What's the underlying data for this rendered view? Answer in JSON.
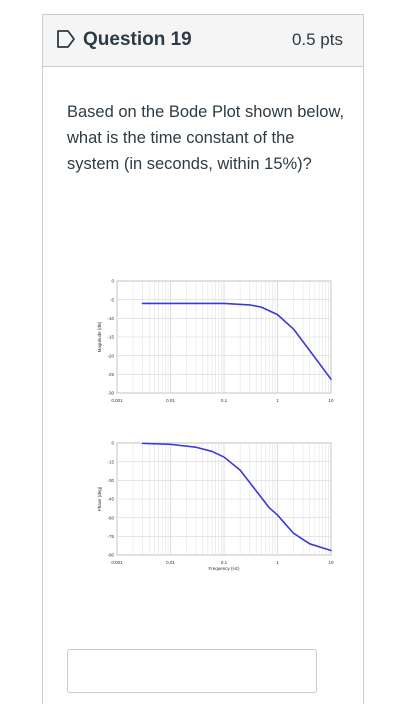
{
  "question": {
    "title": "Question 19",
    "points": "0.5 pts",
    "text": "Based on the Bode Plot shown below, what is the time constant of the system (in seconds, within 15%)?",
    "answer_value": "",
    "flag_icon": "flag-icon"
  },
  "chart_data": [
    {
      "type": "line",
      "ylabel": "Magnitude (dB)",
      "xlabel": "",
      "x_scale": "log",
      "xlim": [
        0.001,
        10
      ],
      "ylim": [
        -30,
        0
      ],
      "x_ticks": [
        "0.001",
        "0.01",
        "0.1",
        "1",
        "10"
      ],
      "y_ticks": [
        "0",
        "-5",
        "-10",
        "-15",
        "-20",
        "-25",
        "-30"
      ],
      "grid": true,
      "series": [
        {
          "color": "#3a3ad6",
          "x": [
            0.003,
            0.1,
            0.3,
            0.5,
            1,
            2,
            5,
            10
          ],
          "y": [
            -6,
            -6,
            -6.4,
            -7,
            -9,
            -12.9,
            -20.5,
            -26.3
          ]
        }
      ]
    },
    {
      "type": "line",
      "ylabel": "Phase (deg)",
      "xlabel": "Frequency (Hz)",
      "x_scale": "log",
      "xlim": [
        0.001,
        10
      ],
      "ylim": [
        -90,
        0
      ],
      "x_ticks": [
        "0.001",
        "0.01",
        "0.1",
        "1",
        "10"
      ],
      "y_ticks": [
        "0",
        "-15",
        "-30",
        "-45",
        "-60",
        "-75",
        "-90"
      ],
      "grid": true,
      "series": [
        {
          "color": "#3a3ad6",
          "x": [
            0.003,
            0.01,
            0.03,
            0.06,
            0.1,
            0.2,
            0.4,
            0.7,
            1,
            2,
            4,
            10
          ],
          "y": [
            -0.3,
            -1.1,
            -3.4,
            -6.8,
            -11.3,
            -21.8,
            -38.5,
            -52,
            -57.9,
            -72.6,
            -81,
            -86.4
          ]
        }
      ]
    }
  ]
}
